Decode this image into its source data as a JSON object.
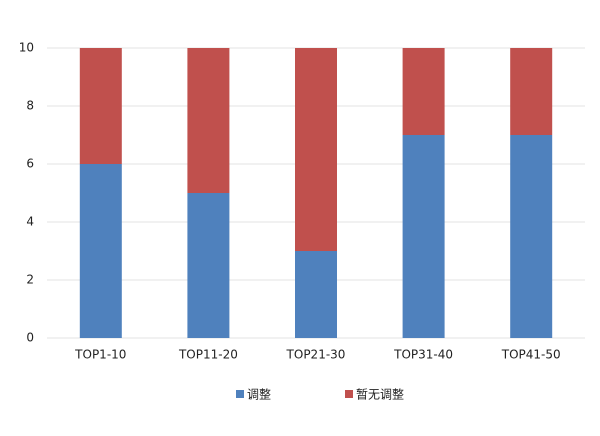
{
  "chart_data": {
    "type": "stacked_bar",
    "categories": [
      "TOP1-10",
      "TOP11-20",
      "TOP21-30",
      "TOP31-40",
      "TOP41-50"
    ],
    "series": [
      {
        "name": "调整",
        "color": "#4f81bd",
        "values": [
          6,
          5,
          3,
          7,
          7
        ]
      },
      {
        "name": "暂无调整",
        "color": "#c0504d",
        "values": [
          4,
          5,
          7,
          3,
          3
        ]
      }
    ],
    "ylim": [
      0,
      10
    ],
    "yticks": [
      0,
      2,
      4,
      6,
      8,
      10
    ],
    "grid": true,
    "legend": "bottom"
  }
}
